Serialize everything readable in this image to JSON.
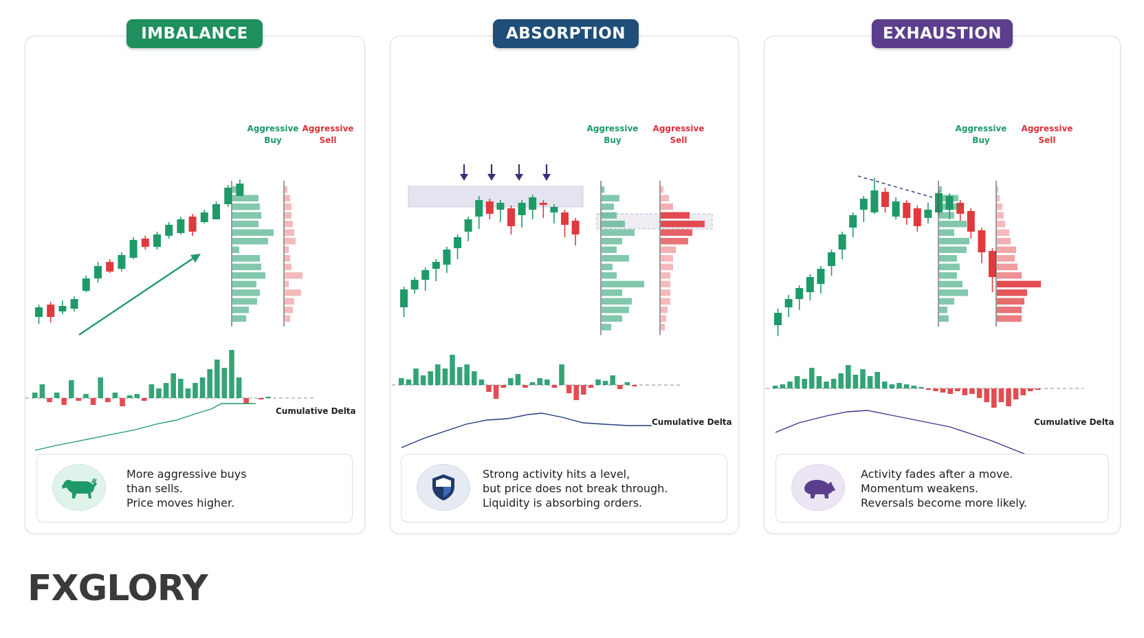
{
  "panels": [
    {
      "title": "IMBALANCE",
      "color": "#1e8f5d",
      "buy_label_1": "Aggressive",
      "buy_label_2": "Buy",
      "sell_label_1": "Aggressive",
      "sell_label_2": "Sell",
      "delta_label": "Cumulative Delta",
      "icon": "bull-icon",
      "text": [
        "More aggressive buys",
        "than sells.",
        "Price moves higher."
      ]
    },
    {
      "title": "ABSORPTION",
      "color": "#1f4e79",
      "buy_label_1": "Aggressive",
      "buy_label_2": "Buy",
      "sell_label_1": "Aggressive",
      "sell_label_2": "Sell",
      "delta_label": "Cumulative Delta",
      "icon": "shield-icon",
      "text": [
        "Strong activity hits a level,",
        "but price does not break through.",
        "Liquidity is absorbing orders."
      ]
    },
    {
      "title": "EXHAUSTION",
      "color": "#5b3f8c",
      "buy_label_1": "Aggressive",
      "buy_label_2": "Buy",
      "sell_label_1": "Aggressive",
      "sell_label_2": "Sell",
      "delta_label": "Cumulative Delta",
      "icon": "bear-icon",
      "text": [
        "Activity fades after a move.",
        "Momentum weakens.",
        "Reversals become more likely."
      ]
    }
  ],
  "brand": {
    "name_part1": "F",
    "name_part2": "X",
    "name_part3": "GLORY"
  },
  "colors": {
    "buy": "#1e9a68",
    "sell": "#e0393e",
    "delta_line_imbalance": "#1e9a68",
    "delta_line_absorption": "#1f3a7a",
    "delta_line_exhaustion": "#4a2e8c",
    "arrow": "#4a3a8c"
  }
}
